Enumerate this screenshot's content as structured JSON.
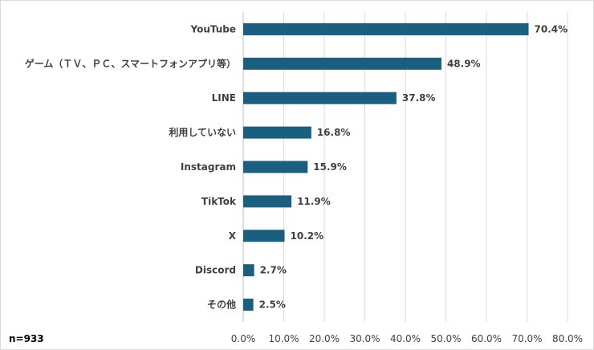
{
  "chart_data": {
    "type": "bar",
    "orientation": "horizontal",
    "categories": [
      "YouTube",
      "ゲーム（ＴＶ、ＰＣ、スマートフォンアプリ等）",
      "LINE",
      "利用していない",
      "Instagram",
      "TikTok",
      "X",
      "Discord",
      "その他"
    ],
    "values": [
      70.4,
      48.9,
      37.8,
      16.8,
      15.9,
      11.9,
      10.2,
      2.7,
      2.5
    ],
    "value_labels": [
      "70.4%",
      "48.9%",
      "37.8%",
      "16.8%",
      "15.9%",
      "11.9%",
      "10.2%",
      "2.7%",
      "2.5%"
    ],
    "x_ticks": [
      "0.0%",
      "10.0%",
      "20.0%",
      "30.0%",
      "40.0%",
      "50.0%",
      "60.0%",
      "70.0%",
      "80.0%"
    ],
    "xlim": [
      0,
      80
    ],
    "grid": "vertical",
    "bar_color": "#1a5e80",
    "title": "",
    "xlabel": "",
    "ylabel": ""
  },
  "note": "n=933"
}
